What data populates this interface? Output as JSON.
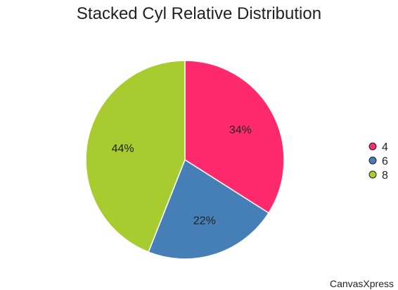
{
  "chart_data": {
    "type": "pie",
    "title": "Stacked Cyl Relative Distribution",
    "slices": [
      {
        "label": "4",
        "value": 34,
        "color": "#FF2A6D"
      },
      {
        "label": "6",
        "value": 22,
        "color": "#467FB5"
      },
      {
        "label": "8",
        "value": 44,
        "color": "#A8CC2F"
      }
    ],
    "value_labels": [
      "34%",
      "22%",
      "44%"
    ],
    "legend_position": "right"
  },
  "watermark": "CanvasXpress"
}
